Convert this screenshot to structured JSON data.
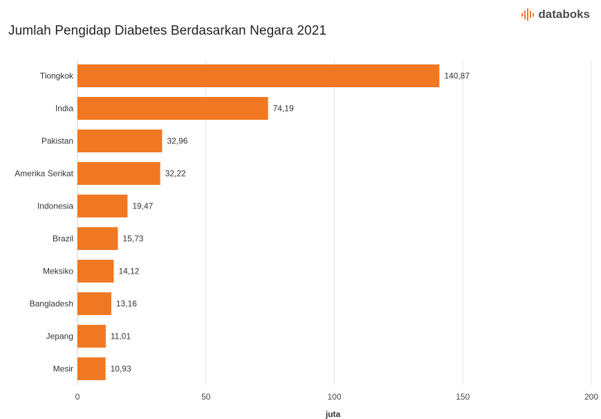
{
  "brand": {
    "name": "databoks",
    "logo_icon": "sound-wave-icon",
    "logo_color": "#f07822"
  },
  "chart_data": {
    "type": "bar",
    "orientation": "horizontal",
    "title": "Jumlah Pengidap Diabetes Berdasarkan Negara 2021",
    "categories": [
      "Tiongkok",
      "India",
      "Pakistan",
      "Amerika Serikat",
      "Indonesia",
      "Brazil",
      "Meksiko",
      "Bangladesh",
      "Jepang",
      "Mesir"
    ],
    "values": [
      140.87,
      74.19,
      32.96,
      32.22,
      19.47,
      15.73,
      14.12,
      13.16,
      11.01,
      10.93
    ],
    "value_labels": [
      "140,87",
      "74,19",
      "32,96",
      "32,22",
      "19,47",
      "15,73",
      "14,12",
      "13,16",
      "11,01",
      "10,93"
    ],
    "xlabel": "juta",
    "ylabel": "",
    "xlim": [
      0,
      200
    ],
    "xticks": [
      0,
      50,
      100,
      150,
      200
    ],
    "grid": true,
    "bar_color": "#f07822",
    "grid_color": "#e3e3e3"
  }
}
